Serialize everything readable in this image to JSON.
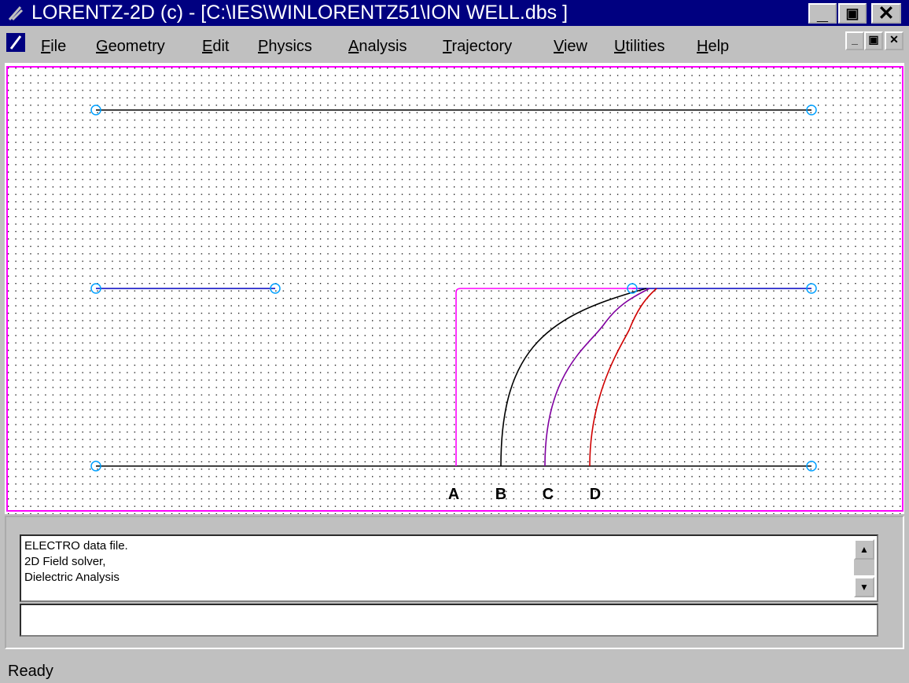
{
  "window": {
    "title": "LORENTZ-2D (c) - [C:\\IES\\WINLORENTZ51\\ION WELL.dbs ]"
  },
  "menu": [
    "File",
    "Geometry",
    "Edit",
    "Physics",
    "Analysis",
    "Trajectory",
    "View",
    "Utilities",
    "Help"
  ],
  "canvas": {
    "labels": [
      "A",
      "B",
      "C",
      "D"
    ]
  },
  "log": {
    "lines": [
      "ELECTRO data file.",
      "2D Field solver,",
      "Dielectric Analysis"
    ]
  },
  "status": "Ready"
}
